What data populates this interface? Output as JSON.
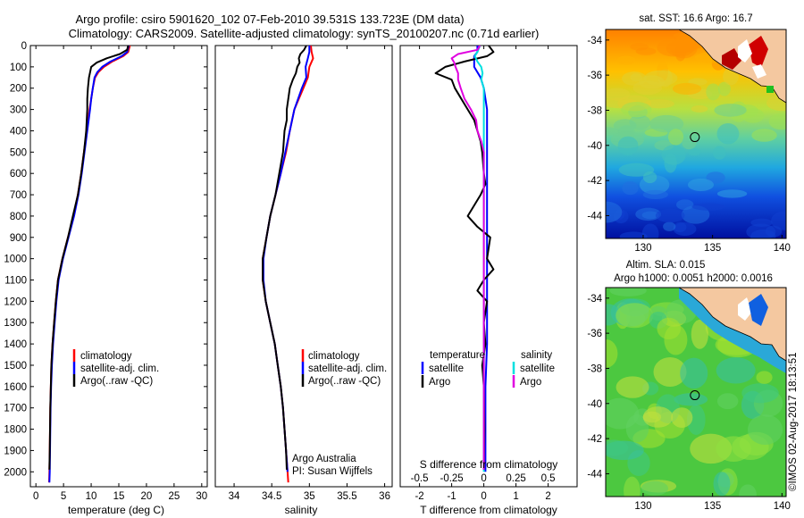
{
  "header": {
    "title_line1": "Argo profile: csiro 5901620_102 07-Feb-2010 39.531S 133.723E (DM data)",
    "title_line2": "Climatology: CARS2009. Satellite-adjusted climatology: synTS_20100207.nc (0.71d earlier)"
  },
  "colors": {
    "climatology": "#ff0000",
    "satellite": "#0000ff",
    "argo": "#000000",
    "satellite_salinity": "#00e0e0",
    "argo_salinity": "#e000e0"
  },
  "depth_axis": {
    "min": 0,
    "max": 2070,
    "ticks": [
      0,
      100,
      200,
      300,
      400,
      500,
      600,
      700,
      800,
      900,
      1000,
      1100,
      1200,
      1300,
      1400,
      1500,
      1600,
      1700,
      1800,
      1900,
      2000
    ]
  },
  "chart_data": [
    {
      "id": "temperature",
      "type": "line",
      "xlabel": "temperature (deg C)",
      "xlim": [
        -1,
        31
      ],
      "xticks": [
        0,
        5,
        10,
        15,
        20,
        25,
        30
      ],
      "legend": {
        "placement": "lower-center",
        "entries": [
          "climatology",
          "satellite-adj. clim.",
          "Argo(..raw -QC)"
        ]
      },
      "series": [
        {
          "name": "climatology",
          "color": "#ff0000",
          "depth": [
            0,
            30,
            50,
            75,
            100,
            125,
            150,
            200,
            250,
            300,
            400,
            500,
            600,
            700,
            800,
            900,
            1000,
            1100,
            1200,
            1300,
            1400,
            1500,
            1600,
            1700,
            1800,
            1900,
            2000,
            2050
          ],
          "values": [
            17.0,
            16.7,
            15.8,
            13.8,
            12.3,
            11.3,
            10.7,
            10.3,
            10.0,
            9.7,
            9.2,
            8.7,
            8.2,
            7.6,
            6.8,
            5.8,
            4.8,
            4.0,
            3.6,
            3.3,
            3.0,
            2.8,
            2.7,
            2.6,
            2.55,
            2.5,
            2.45,
            2.4
          ]
        },
        {
          "name": "satellite-adj. clim.",
          "color": "#0000ff",
          "depth": [
            0,
            30,
            50,
            75,
            100,
            125,
            150,
            200,
            250,
            300,
            400,
            500,
            600,
            700,
            800,
            900,
            1000,
            1100,
            1200,
            1300,
            1400,
            1500,
            1600,
            1700,
            1800,
            1900,
            2000,
            2050
          ],
          "values": [
            16.8,
            16.5,
            15.5,
            13.5,
            12.0,
            11.1,
            10.6,
            10.3,
            10.0,
            9.8,
            9.3,
            8.8,
            8.3,
            7.7,
            6.9,
            5.9,
            4.9,
            4.1,
            3.7,
            3.4,
            3.1,
            2.9,
            2.75,
            2.65,
            2.6,
            2.55,
            2.5,
            2.45
          ]
        },
        {
          "name": "Argo(..raw -QC)",
          "color": "#000000",
          "depth": [
            0,
            20,
            40,
            60,
            80,
            100,
            150,
            200,
            250,
            300,
            350,
            400,
            500,
            600,
            700,
            800,
            900,
            1000,
            1100,
            1200,
            1300,
            1400,
            1500,
            1600,
            1700,
            1800,
            1900,
            1990
          ],
          "values": [
            16.7,
            16.5,
            15.2,
            12.8,
            11.0,
            10.0,
            9.6,
            9.4,
            9.3,
            9.3,
            9.2,
            9.1,
            8.7,
            8.2,
            7.6,
            6.7,
            5.8,
            4.8,
            4.0,
            3.6,
            3.3,
            3.0,
            2.8,
            2.7,
            2.6,
            2.55,
            2.5,
            2.45
          ]
        }
      ]
    },
    {
      "id": "salinity",
      "type": "line",
      "xlabel": "salinity",
      "xlim": [
        33.75,
        36.1
      ],
      "xticks": [
        34,
        34.5,
        35,
        35.5,
        36
      ],
      "legend": {
        "placement": "lower-center",
        "entries": [
          "climatology",
          "satellite-adj. clim.",
          "Argo(..raw -QC)"
        ]
      },
      "annotations": [
        "Argo Australia",
        "PI: Susan Wijffels"
      ],
      "series": [
        {
          "name": "climatology",
          "color": "#ff0000",
          "depth": [
            0,
            30,
            60,
            100,
            150,
            200,
            250,
            300,
            400,
            500,
            600,
            700,
            800,
            900,
            1000,
            1100,
            1200,
            1300,
            1400,
            1500,
            1600,
            1700,
            1800,
            1900,
            2000,
            2050
          ],
          "values": [
            35.02,
            35.03,
            35.05,
            35.0,
            34.98,
            34.92,
            34.86,
            34.8,
            34.74,
            34.69,
            34.62,
            34.55,
            34.48,
            34.43,
            34.38,
            34.38,
            34.42,
            34.48,
            34.54,
            34.58,
            34.62,
            34.65,
            34.67,
            34.69,
            34.71,
            34.72
          ]
        },
        {
          "name": "satellite-adj. clim.",
          "color": "#0000ff",
          "depth": [
            0,
            30,
            60,
            100,
            150,
            200,
            250,
            300,
            400,
            500,
            600,
            700,
            800,
            900,
            1000,
            1100,
            1200,
            1300,
            1400,
            1500,
            1600,
            1700,
            1800,
            1900,
            2000
          ],
          "values": [
            35.0,
            35.0,
            34.98,
            34.95,
            34.96,
            34.9,
            34.85,
            34.8,
            34.74,
            34.68,
            34.62,
            34.55,
            34.48,
            34.43,
            34.39,
            34.39,
            34.42,
            34.48,
            34.54,
            34.58,
            34.62,
            34.65,
            34.67,
            34.69,
            34.71
          ]
        },
        {
          "name": "Argo(..raw -QC)",
          "color": "#000000",
          "depth": [
            0,
            20,
            40,
            60,
            80,
            100,
            130,
            160,
            200,
            250,
            300,
            350,
            400,
            500,
            600,
            700,
            800,
            900,
            1000,
            1100,
            1200,
            1300,
            1400,
            1500,
            1600,
            1700,
            1800,
            1900,
            1990
          ],
          "values": [
            34.96,
            34.93,
            34.88,
            34.86,
            34.87,
            34.84,
            34.82,
            34.78,
            34.74,
            34.72,
            34.7,
            34.7,
            34.67,
            34.65,
            34.6,
            34.55,
            34.48,
            34.43,
            34.38,
            34.38,
            34.42,
            34.48,
            34.54,
            34.58,
            34.62,
            34.65,
            34.67,
            34.69,
            34.7
          ]
        }
      ]
    },
    {
      "id": "difference",
      "type": "line",
      "xlabel": "T difference from climatology",
      "xlabel_top": "S difference from climatology",
      "xlim": [
        -2.6,
        2.9
      ],
      "xticks": [
        -2,
        -1,
        0,
        1,
        2
      ],
      "xticks_top": [
        -0.5,
        -0.25,
        0,
        0.25,
        0.5
      ],
      "legend": {
        "placement": "lower-center",
        "temperature_heading": "temperature",
        "salinity_heading": "salinity",
        "temperature_entries": [
          "satellite",
          "Argo"
        ],
        "salinity_entries": [
          "satellite",
          "Argo"
        ]
      },
      "series": [
        {
          "name": "T satellite",
          "color": "#0000ff",
          "depth": [
            0,
            30,
            50,
            75,
            100,
            150,
            200,
            300,
            400,
            500,
            600,
            700,
            800,
            900,
            1000,
            1100,
            1200,
            1400,
            1600,
            1800,
            2000
          ],
          "values": [
            -0.2,
            -0.2,
            -0.3,
            -0.3,
            -0.3,
            -0.1,
            0,
            0.1,
            0.1,
            0.1,
            0.1,
            0.1,
            0.1,
            0.1,
            0.1,
            0.1,
            0.1,
            0.1,
            0.05,
            0.05,
            0.05
          ]
        },
        {
          "name": "T Argo",
          "color": "#000000",
          "depth": [
            0,
            30,
            50,
            75,
            100,
            130,
            160,
            200,
            250,
            300,
            350,
            400,
            450,
            500,
            600,
            650,
            700,
            750,
            800,
            850,
            900,
            1000,
            1050,
            1100,
            1150,
            1200,
            1300,
            1400,
            1500,
            1600,
            1800,
            1990
          ],
          "values": [
            0.15,
            0.3,
            0.1,
            -0.6,
            -1.2,
            -1.5,
            -1.0,
            -0.9,
            -0.7,
            -0.5,
            -0.3,
            -0.2,
            -0.1,
            -0.05,
            0,
            0.05,
            -0.1,
            -0.3,
            -0.5,
            -0.2,
            0.2,
            0.1,
            0.3,
            0,
            -0.2,
            0.1,
            0,
            0.05,
            -0.05,
            0,
            0.02,
            0.0
          ]
        },
        {
          "name": "S satellite",
          "color": "#00e0e0",
          "depth": [
            0,
            30,
            50,
            75,
            100,
            130,
            160,
            200,
            250,
            300,
            400,
            500,
            600,
            800,
            1000,
            1200,
            1400,
            1600,
            1800,
            2000
          ],
          "values": [
            -0.03,
            -0.05,
            -0.07,
            -0.05,
            -0.02,
            -0.01,
            -0.02,
            0,
            0,
            0,
            0,
            0,
            0,
            0,
            0,
            0,
            0,
            0,
            0,
            0
          ]
        },
        {
          "name": "S Argo",
          "color": "#e000e0",
          "depth": [
            0,
            20,
            40,
            60,
            80,
            100,
            130,
            160,
            200,
            250,
            300,
            350,
            400,
            450,
            500,
            600,
            800,
            1000,
            1200,
            1400,
            1600,
            1800,
            1990
          ],
          "values": [
            -0.03,
            -0.05,
            -0.2,
            -0.25,
            -0.23,
            -0.22,
            -0.2,
            -0.2,
            -0.18,
            -0.15,
            -0.1,
            -0.06,
            -0.05,
            -0.02,
            0,
            0,
            0,
            0,
            0,
            0,
            0,
            0,
            0
          ]
        }
      ]
    },
    {
      "id": "sst-map",
      "type": "heatmap",
      "title": "sat. SST: 16.6  Argo: 16.7",
      "xlim": [
        127.3,
        140.3
      ],
      "ylim": [
        -45.3,
        -33.4
      ],
      "xticks": [
        130,
        135,
        140
      ],
      "yticks": [
        -34,
        -36,
        -38,
        -40,
        -42,
        -44
      ],
      "argo_location": {
        "lon": 133.723,
        "lat": -39.531
      }
    },
    {
      "id": "sla-map",
      "type": "heatmap",
      "title_line1": "Altim. SLA: 0.015",
      "title_line2": "Argo h1000: 0.0051  h2000: 0.0016",
      "xlim": [
        127.3,
        140.3
      ],
      "ylim": [
        -45.3,
        -33.4
      ],
      "xticks": [
        130,
        135,
        140
      ],
      "yticks": [
        -34,
        -36,
        -38,
        -40,
        -42,
        -44
      ],
      "argo_location": {
        "lon": 133.723,
        "lat": -39.531
      }
    }
  ],
  "footer": {
    "credit": "©IMOS 02-Aug-2017 18:13:51"
  }
}
